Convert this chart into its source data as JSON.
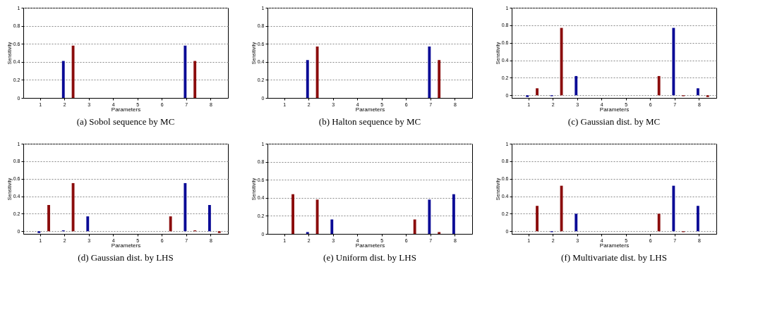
{
  "chart_data": [
    {
      "type": "bar",
      "title": "(a) Sobol sequence by MC",
      "xlabel": "Parameters",
      "ylabel": "Sensitivity",
      "categories": [
        "1",
        "2",
        "3",
        "4",
        "5",
        "6",
        "7",
        "8"
      ],
      "ylim": [
        0,
        1
      ],
      "yticks": [
        0,
        0.2,
        0.4,
        0.6,
        0.8,
        1
      ],
      "grid": "y",
      "series": [
        {
          "color": "#0a0a96",
          "values": [
            0,
            0.41,
            0,
            0,
            0,
            0,
            0.58,
            0
          ]
        },
        {
          "color": "#8b0c0c",
          "values": [
            0,
            0.58,
            0,
            0,
            0,
            0,
            0.41,
            0
          ]
        }
      ]
    },
    {
      "type": "bar",
      "title": "(b) Halton sequence by MC",
      "xlabel": "Parameters",
      "ylabel": "Sensitivity",
      "categories": [
        "1",
        "2",
        "3",
        "4",
        "5",
        "6",
        "7",
        "8"
      ],
      "ylim": [
        0,
        1
      ],
      "yticks": [
        0,
        0.2,
        0.4,
        0.6,
        0.8,
        1
      ],
      "grid": "y",
      "series": [
        {
          "color": "#0a0a96",
          "values": [
            0,
            0.42,
            0,
            0,
            0,
            0,
            0.57,
            0
          ]
        },
        {
          "color": "#8b0c0c",
          "values": [
            0,
            0.57,
            0,
            0,
            0,
            0,
            0.42,
            0
          ]
        }
      ]
    },
    {
      "type": "bar",
      "title": "(c) Gaussian dist. by MC",
      "xlabel": "Parameters",
      "ylabel": "Sensitivity",
      "categories": [
        "1",
        "2",
        "3",
        "4",
        "5",
        "6",
        "7",
        "8"
      ],
      "ylim": [
        -0.03,
        1
      ],
      "yticks": [
        0,
        0.2,
        0.4,
        0.6,
        0.8,
        1
      ],
      "grid": "y",
      "series": [
        {
          "color": "#0a0a96",
          "values": [
            -0.02,
            -0.01,
            0.22,
            0,
            0,
            0,
            0.77,
            0.08
          ]
        },
        {
          "color": "#8b0c0c",
          "values": [
            0.08,
            0.77,
            0,
            0,
            0,
            0.22,
            -0.01,
            -0.02
          ]
        }
      ]
    },
    {
      "type": "bar",
      "title": "(d) Gaussian dist. by LHS",
      "xlabel": "Parameters",
      "ylabel": "Sensitivity",
      "categories": [
        "1",
        "2",
        "3",
        "4",
        "5",
        "6",
        "7",
        "8"
      ],
      "ylim": [
        -0.03,
        1
      ],
      "yticks": [
        0,
        0.2,
        0.4,
        0.6,
        0.8,
        1
      ],
      "grid": "y",
      "series": [
        {
          "color": "#0a0a96",
          "values": [
            -0.02,
            0.01,
            0.17,
            0,
            0,
            0,
            0.55,
            0.3
          ]
        },
        {
          "color": "#8b0c0c",
          "values": [
            0.3,
            0.55,
            0,
            0,
            0,
            0.17,
            0.01,
            -0.02
          ]
        }
      ]
    },
    {
      "type": "bar",
      "title": "(e) Uniform dist. by LHS",
      "xlabel": "Parameters",
      "ylabel": "Sensitivity",
      "categories": [
        "1",
        "2",
        "3",
        "4",
        "5",
        "6",
        "7",
        "8"
      ],
      "ylim": [
        0,
        1
      ],
      "yticks": [
        0,
        0.2,
        0.4,
        0.6,
        0.8,
        1
      ],
      "grid": "y",
      "series": [
        {
          "color": "#0a0a96",
          "values": [
            0,
            0.02,
            0.16,
            0,
            0,
            0,
            0.38,
            0.44
          ]
        },
        {
          "color": "#8b0c0c",
          "values": [
            0.44,
            0.38,
            0,
            0,
            0,
            0.16,
            0.02,
            0
          ]
        }
      ]
    },
    {
      "type": "bar",
      "title": "(f) Multivariate dist. by LHS",
      "xlabel": "Parameters",
      "ylabel": "Sensitivity",
      "categories": [
        "1",
        "2",
        "3",
        "4",
        "5",
        "6",
        "7",
        "8"
      ],
      "ylim": [
        -0.03,
        1
      ],
      "yticks": [
        0,
        0.2,
        0.4,
        0.6,
        0.8,
        1
      ],
      "grid": "y",
      "series": [
        {
          "color": "#0a0a96",
          "values": [
            0,
            -0.01,
            0.2,
            0,
            0,
            0,
            0.52,
            0.29
          ]
        },
        {
          "color": "#8b0c0c",
          "values": [
            0.29,
            0.52,
            0,
            0,
            0,
            0.2,
            -0.01,
            0
          ]
        }
      ]
    }
  ]
}
